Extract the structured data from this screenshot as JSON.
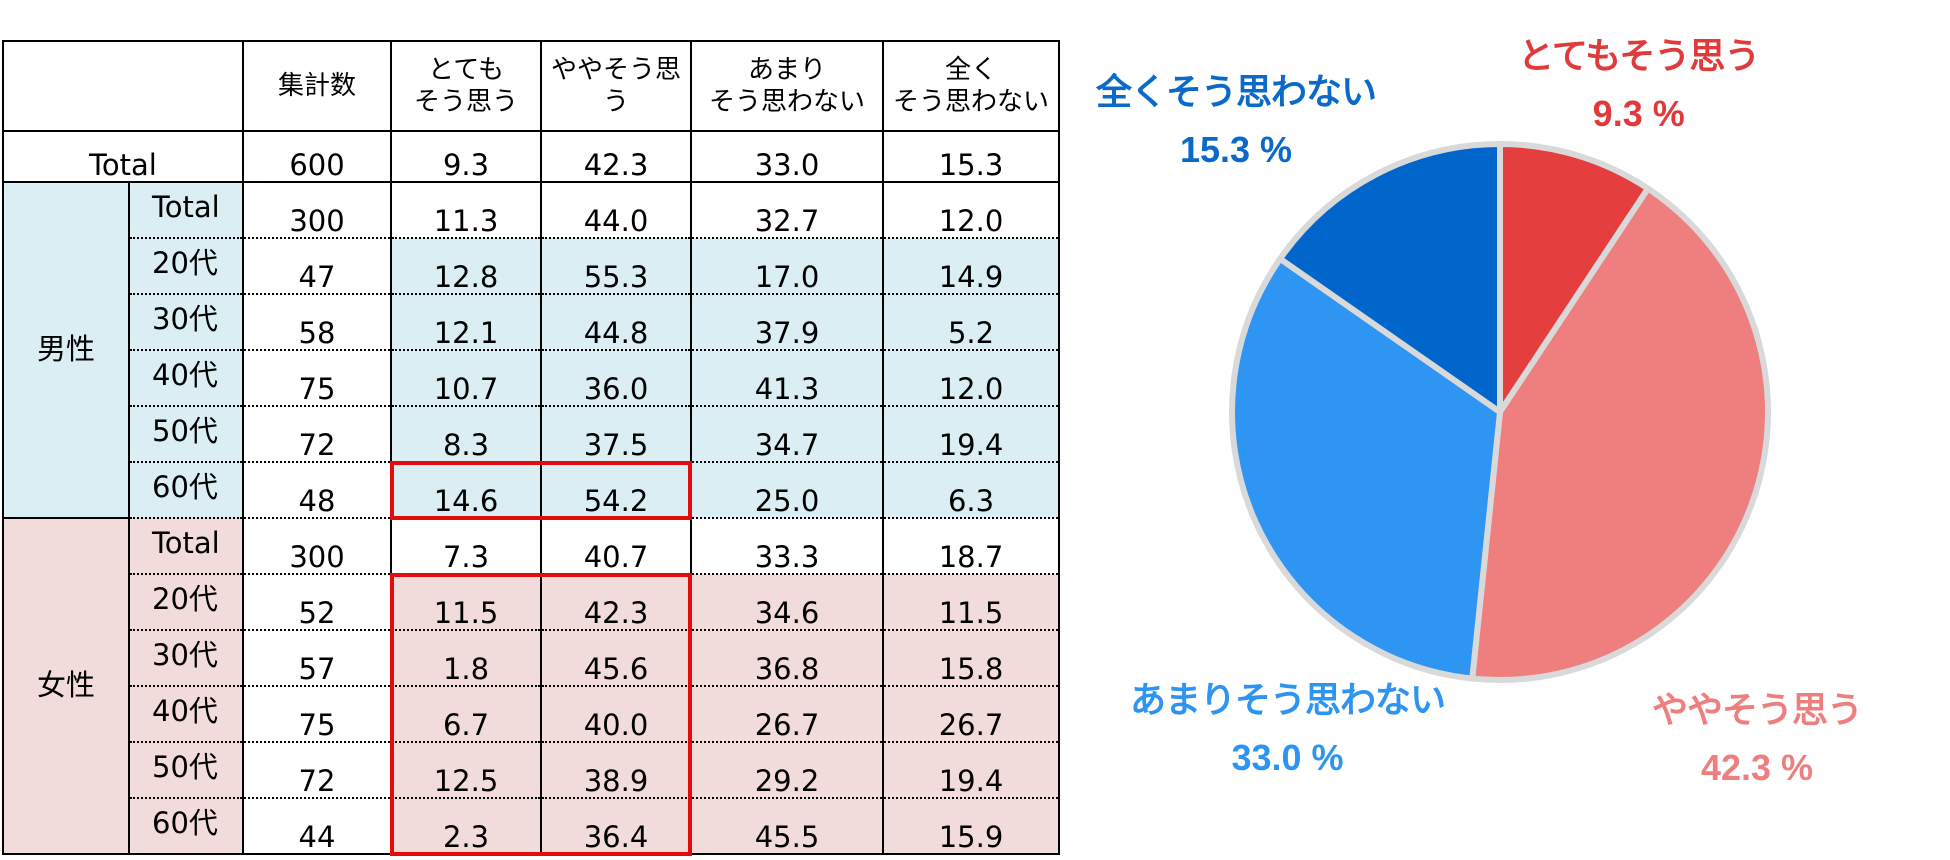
{
  "table": {
    "headers": [
      "",
      "集計数",
      "とても\nそう思う",
      "ややそう思う",
      "あまり\nそう思わない",
      "全く\nそう思わない"
    ],
    "grand_total": {
      "label": "Total",
      "n": "600",
      "values": [
        "9.3",
        "42.3",
        "33.0",
        "15.3"
      ]
    },
    "groups": [
      {
        "name": "男性",
        "bg": "#dbeef3",
        "rows": [
          {
            "label": "Total",
            "n": "300",
            "values": [
              "11.3",
              "44.0",
              "32.7",
              "12.0"
            ]
          },
          {
            "label": "20代",
            "n": "47",
            "values": [
              "12.8",
              "55.3",
              "17.0",
              "14.9"
            ]
          },
          {
            "label": "30代",
            "n": "58",
            "values": [
              "12.1",
              "44.8",
              "37.9",
              "5.2"
            ]
          },
          {
            "label": "40代",
            "n": "75",
            "values": [
              "10.7",
              "36.0",
              "41.3",
              "12.0"
            ]
          },
          {
            "label": "50代",
            "n": "72",
            "values": [
              "8.3",
              "37.5",
              "34.7",
              "19.4"
            ]
          },
          {
            "label": "60代",
            "n": "48",
            "values": [
              "14.6",
              "54.2",
              "25.0",
              "6.3"
            ]
          }
        ]
      },
      {
        "name": "女性",
        "bg": "#f2dcdb",
        "rows": [
          {
            "label": "Total",
            "n": "300",
            "values": [
              "7.3",
              "40.7",
              "33.3",
              "18.7"
            ]
          },
          {
            "label": "20代",
            "n": "52",
            "values": [
              "11.5",
              "42.3",
              "34.6",
              "11.5"
            ]
          },
          {
            "label": "30代",
            "n": "57",
            "values": [
              "1.8",
              "45.6",
              "36.8",
              "15.8"
            ]
          },
          {
            "label": "40代",
            "n": "75",
            "values": [
              "6.7",
              "40.0",
              "26.7",
              "26.7"
            ]
          },
          {
            "label": "50代",
            "n": "72",
            "values": [
              "12.5",
              "38.9",
              "29.2",
              "19.4"
            ]
          },
          {
            "label": "60代",
            "n": "44",
            "values": [
              "2.3",
              "36.4",
              "45.5",
              "15.9"
            ]
          }
        ]
      }
    ],
    "highlight_color": "#e30c0c"
  },
  "chart_data": {
    "type": "pie",
    "slices": [
      {
        "name": "とてもそう思う",
        "value": 9.3,
        "label": "9.3 %",
        "color": "#e53e3e",
        "label_color": "#e03a3a"
      },
      {
        "name": "ややそう思う",
        "value": 42.3,
        "label": "42.3 %",
        "color": "#ef7f7f",
        "label_color": "#ee7f7f"
      },
      {
        "name": "あまりそう思わない",
        "value": 33.0,
        "label": "33.0 %",
        "color": "#2e95f3",
        "label_color": "#2d94f2"
      },
      {
        "name": "全くそう思わない",
        "value": 15.3,
        "label": "15.3 %",
        "color": "#0066cc",
        "label_color": "#0b69c9"
      }
    ],
    "separator_color": "#d9d9d9",
    "start": "12 o'clock",
    "direction": "clockwise"
  }
}
